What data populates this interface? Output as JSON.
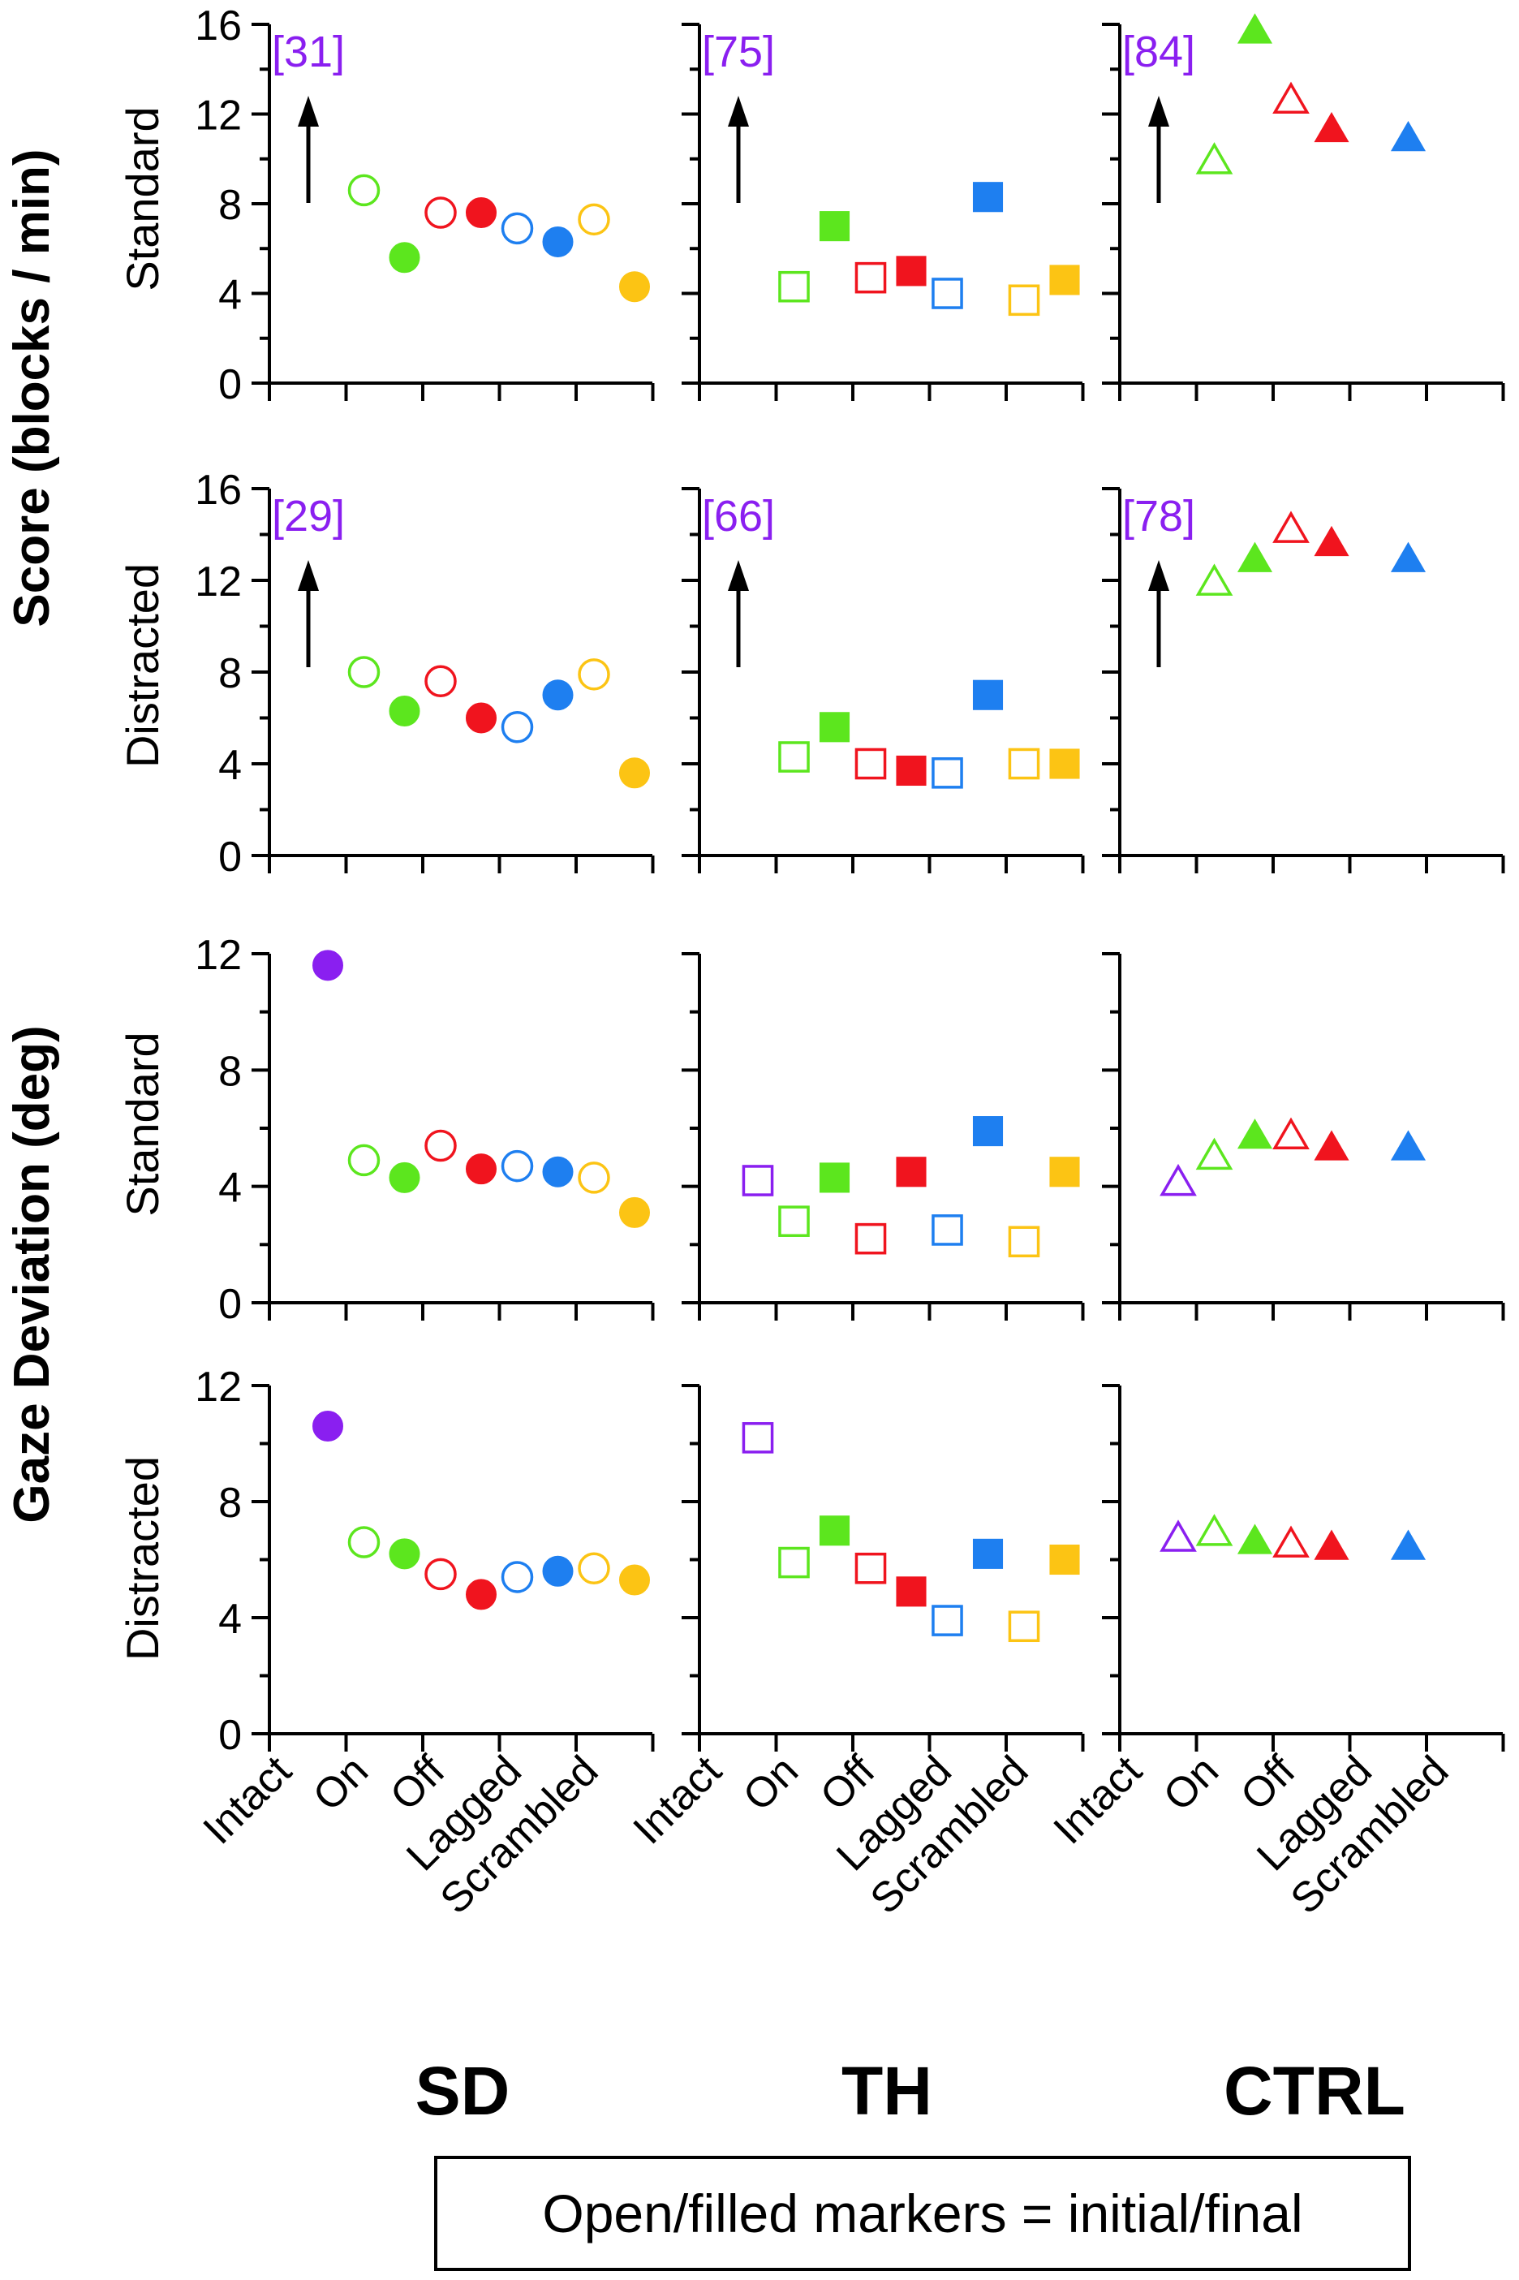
{
  "figure": {
    "score_label": "Score (blocks / min)",
    "gaze_label": "Gaze Deviation (deg)",
    "legend_text": "Open/filled markers = initial/final",
    "groups": [
      "SD",
      "TH",
      "CTRL"
    ],
    "categories": [
      "Intact",
      "On",
      "Off",
      "Lagged",
      "Scrambled"
    ]
  },
  "colors": {
    "Intact": "#8a1ff0",
    "On": "#5ce61e",
    "Off": "#f0141e",
    "Lagged": "#1e7ff0",
    "Scrambled": "#fcc414",
    "axis": "#000000",
    "annotation": "#8a1ff0"
  },
  "chart_data": [
    {
      "type": "scatter",
      "row_label": "Standard",
      "measure": "Score (blocks / min)",
      "ylim": [
        0,
        16
      ],
      "yticks": [
        0,
        4,
        8,
        12,
        16
      ],
      "annotations": [
        {
          "group": "SD",
          "text": "[31]",
          "arrow": "up"
        },
        {
          "group": "TH",
          "text": "[75]",
          "arrow": "up"
        },
        {
          "group": "CTRL",
          "text": "[84]",
          "arrow": "up"
        }
      ],
      "series": [
        {
          "group": "SD",
          "marker": "circle",
          "points": [
            {
              "category": "On",
              "stage": "initial",
              "value": 8.6
            },
            {
              "category": "On",
              "stage": "final",
              "value": 5.6
            },
            {
              "category": "Off",
              "stage": "initial",
              "value": 7.6
            },
            {
              "category": "Off",
              "stage": "final",
              "value": 7.6
            },
            {
              "category": "Lagged",
              "stage": "initial",
              "value": 6.9
            },
            {
              "category": "Lagged",
              "stage": "final",
              "value": 6.3
            },
            {
              "category": "Scrambled",
              "stage": "initial",
              "value": 7.3
            },
            {
              "category": "Scrambled",
              "stage": "final",
              "value": 4.3
            }
          ]
        },
        {
          "group": "TH",
          "marker": "square",
          "points": [
            {
              "category": "On",
              "stage": "initial",
              "value": 4.3
            },
            {
              "category": "On",
              "stage": "final",
              "value": 7.0
            },
            {
              "category": "Off",
              "stage": "initial",
              "value": 4.7
            },
            {
              "category": "Off",
              "stage": "final",
              "value": 5.0
            },
            {
              "category": "Lagged",
              "stage": "initial",
              "value": 4.0
            },
            {
              "category": "Lagged",
              "stage": "final",
              "value": 8.3
            },
            {
              "category": "Scrambled",
              "stage": "initial",
              "value": 3.7
            },
            {
              "category": "Scrambled",
              "stage": "final",
              "value": 4.6
            }
          ]
        },
        {
          "group": "CTRL",
          "marker": "triangle",
          "points": [
            {
              "category": "On",
              "stage": "initial",
              "value": 10.0
            },
            {
              "category": "On",
              "stage": "final",
              "value": 15.8
            },
            {
              "category": "Off",
              "stage": "initial",
              "value": 12.7
            },
            {
              "category": "Off",
              "stage": "final",
              "value": 11.4
            },
            {
              "category": "Lagged",
              "stage": "final",
              "value": 11.0
            }
          ]
        }
      ]
    },
    {
      "type": "scatter",
      "row_label": "Distracted",
      "measure": "Score (blocks / min)",
      "ylim": [
        0,
        16
      ],
      "yticks": [
        0,
        4,
        8,
        12,
        16
      ],
      "annotations": [
        {
          "group": "SD",
          "text": "[29]",
          "arrow": "up"
        },
        {
          "group": "TH",
          "text": "[66]",
          "arrow": "up"
        },
        {
          "group": "CTRL",
          "text": "[78]",
          "arrow": "up"
        }
      ],
      "series": [
        {
          "group": "SD",
          "marker": "circle",
          "points": [
            {
              "category": "On",
              "stage": "initial",
              "value": 8.0
            },
            {
              "category": "On",
              "stage": "final",
              "value": 6.3
            },
            {
              "category": "Off",
              "stage": "initial",
              "value": 7.6
            },
            {
              "category": "Off",
              "stage": "final",
              "value": 6.0
            },
            {
              "category": "Lagged",
              "stage": "initial",
              "value": 5.6
            },
            {
              "category": "Lagged",
              "stage": "final",
              "value": 7.0
            },
            {
              "category": "Scrambled",
              "stage": "initial",
              "value": 7.9
            },
            {
              "category": "Scrambled",
              "stage": "final",
              "value": 3.6
            }
          ]
        },
        {
          "group": "TH",
          "marker": "square",
          "points": [
            {
              "category": "On",
              "stage": "initial",
              "value": 4.3
            },
            {
              "category": "On",
              "stage": "final",
              "value": 5.6
            },
            {
              "category": "Off",
              "stage": "initial",
              "value": 4.0
            },
            {
              "category": "Off",
              "stage": "final",
              "value": 3.7
            },
            {
              "category": "Lagged",
              "stage": "initial",
              "value": 3.6
            },
            {
              "category": "Lagged",
              "stage": "final",
              "value": 7.0
            },
            {
              "category": "Scrambled",
              "stage": "initial",
              "value": 4.0
            },
            {
              "category": "Scrambled",
              "stage": "final",
              "value": 4.0
            }
          ]
        },
        {
          "group": "CTRL",
          "marker": "triangle",
          "points": [
            {
              "category": "On",
              "stage": "initial",
              "value": 12.0
            },
            {
              "category": "On",
              "stage": "final",
              "value": 13.0
            },
            {
              "category": "Off",
              "stage": "initial",
              "value": 14.3
            },
            {
              "category": "Off",
              "stage": "final",
              "value": 13.7
            },
            {
              "category": "Lagged",
              "stage": "final",
              "value": 13.0
            }
          ]
        }
      ]
    },
    {
      "type": "scatter",
      "row_label": "Standard",
      "measure": "Gaze Deviation (deg)",
      "ylim": [
        0,
        12
      ],
      "yticks": [
        0,
        4,
        8,
        12
      ],
      "annotations": [],
      "series": [
        {
          "group": "SD",
          "marker": "circle",
          "points": [
            {
              "category": "Intact",
              "stage": "final",
              "value": 11.6
            },
            {
              "category": "On",
              "stage": "initial",
              "value": 4.9
            },
            {
              "category": "On",
              "stage": "final",
              "value": 4.3
            },
            {
              "category": "Off",
              "stage": "initial",
              "value": 5.4
            },
            {
              "category": "Off",
              "stage": "final",
              "value": 4.6
            },
            {
              "category": "Lagged",
              "stage": "initial",
              "value": 4.7
            },
            {
              "category": "Lagged",
              "stage": "final",
              "value": 4.5
            },
            {
              "category": "Scrambled",
              "stage": "initial",
              "value": 4.3
            },
            {
              "category": "Scrambled",
              "stage": "final",
              "value": 3.1
            }
          ]
        },
        {
          "group": "TH",
          "marker": "square",
          "points": [
            {
              "category": "Intact",
              "stage": "initial",
              "value": 4.2
            },
            {
              "category": "On",
              "stage": "initial",
              "value": 2.8
            },
            {
              "category": "On",
              "stage": "final",
              "value": 4.3
            },
            {
              "category": "Off",
              "stage": "initial",
              "value": 2.2
            },
            {
              "category": "Off",
              "stage": "final",
              "value": 4.5
            },
            {
              "category": "Lagged",
              "stage": "initial",
              "value": 2.5
            },
            {
              "category": "Lagged",
              "stage": "final",
              "value": 5.9
            },
            {
              "category": "Scrambled",
              "stage": "initial",
              "value": 2.1
            },
            {
              "category": "Scrambled",
              "stage": "final",
              "value": 4.5
            }
          ]
        },
        {
          "group": "CTRL",
          "marker": "triangle",
          "points": [
            {
              "category": "Intact",
              "stage": "initial",
              "value": 4.2
            },
            {
              "category": "On",
              "stage": "initial",
              "value": 5.1
            },
            {
              "category": "On",
              "stage": "final",
              "value": 5.8
            },
            {
              "category": "Off",
              "stage": "initial",
              "value": 5.8
            },
            {
              "category": "Off",
              "stage": "final",
              "value": 5.4
            },
            {
              "category": "Lagged",
              "stage": "final",
              "value": 5.4
            }
          ]
        }
      ]
    },
    {
      "type": "scatter",
      "row_label": "Distracted",
      "measure": "Gaze Deviation (deg)",
      "ylim": [
        0,
        12
      ],
      "yticks": [
        0,
        4,
        8,
        12
      ],
      "annotations": [],
      "series": [
        {
          "group": "SD",
          "marker": "circle",
          "points": [
            {
              "category": "Intact",
              "stage": "final",
              "value": 10.6
            },
            {
              "category": "On",
              "stage": "initial",
              "value": 6.6
            },
            {
              "category": "On",
              "stage": "final",
              "value": 6.2
            },
            {
              "category": "Off",
              "stage": "initial",
              "value": 5.5
            },
            {
              "category": "Off",
              "stage": "final",
              "value": 4.8
            },
            {
              "category": "Lagged",
              "stage": "initial",
              "value": 5.4
            },
            {
              "category": "Lagged",
              "stage": "final",
              "value": 5.6
            },
            {
              "category": "Scrambled",
              "stage": "initial",
              "value": 5.7
            },
            {
              "category": "Scrambled",
              "stage": "final",
              "value": 5.3
            }
          ]
        },
        {
          "group": "TH",
          "marker": "square",
          "points": [
            {
              "category": "Intact",
              "stage": "initial",
              "value": 10.2
            },
            {
              "category": "On",
              "stage": "initial",
              "value": 5.9
            },
            {
              "category": "On",
              "stage": "final",
              "value": 7.0
            },
            {
              "category": "Off",
              "stage": "initial",
              "value": 5.7
            },
            {
              "category": "Off",
              "stage": "final",
              "value": 4.9
            },
            {
              "category": "Lagged",
              "stage": "initial",
              "value": 3.9
            },
            {
              "category": "Lagged",
              "stage": "final",
              "value": 6.2
            },
            {
              "category": "Scrambled",
              "stage": "initial",
              "value": 3.7
            },
            {
              "category": "Scrambled",
              "stage": "final",
              "value": 6.0
            }
          ]
        },
        {
          "group": "CTRL",
          "marker": "triangle",
          "points": [
            {
              "category": "Intact",
              "stage": "initial",
              "value": 6.8
            },
            {
              "category": "On",
              "stage": "initial",
              "value": 7.0
            },
            {
              "category": "On",
              "stage": "final",
              "value": 6.7
            },
            {
              "category": "Off",
              "stage": "initial",
              "value": 6.6
            },
            {
              "category": "Off",
              "stage": "final",
              "value": 6.5
            },
            {
              "category": "Lagged",
              "stage": "final",
              "value": 6.5
            }
          ]
        }
      ]
    }
  ]
}
